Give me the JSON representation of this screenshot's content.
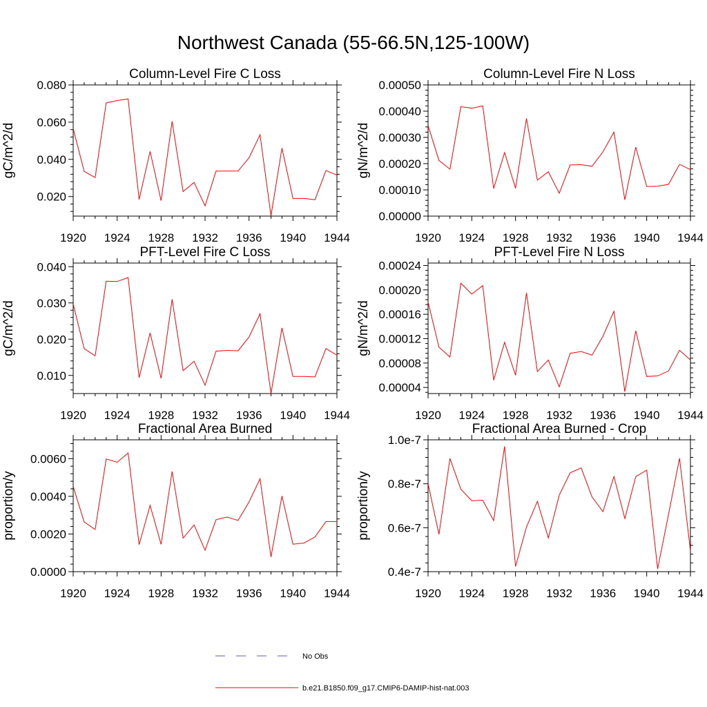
{
  "title": "Northwest Canada (55-66.5N,125-100W)",
  "colors": {
    "series": "#ff0000",
    "obs": "#5a5aaa",
    "axis": "#000000"
  },
  "legend": [
    {
      "label": "No Obs",
      "style": "dashed",
      "color": "#5a5aaa"
    },
    {
      "label": "b.e21.B1850.f09_g17.CMIP6-DAMIP-hist-nat.003",
      "style": "solid",
      "color": "#ff0000"
    }
  ],
  "chart_data": [
    {
      "type": "line",
      "title": "Column-Level Fire C Loss",
      "ylabel": "gC/m^2/d",
      "xlabel": "",
      "xlim": [
        1920,
        1944
      ],
      "ylim": [
        0.0095,
        0.08
      ],
      "xticks": [
        1920,
        1924,
        1928,
        1932,
        1936,
        1940,
        1944
      ],
      "yticks": [
        0.02,
        0.04,
        0.06,
        0.08
      ],
      "ytick_labels": [
        "0.020",
        "0.040",
        "0.060",
        "0.080"
      ],
      "x": [
        1920,
        1921,
        1922,
        1923,
        1924,
        1925,
        1926,
        1927,
        1928,
        1929,
        1930,
        1931,
        1932,
        1933,
        1934,
        1935,
        1936,
        1937,
        1938,
        1939,
        1940,
        1941,
        1942,
        1943,
        1944
      ],
      "series": [
        {
          "name": "b.e21.B1850.f09_g17.CMIP6-DAMIP-hist-nat.003",
          "values": [
            0.0565,
            0.0335,
            0.0302,
            0.0703,
            0.0716,
            0.0725,
            0.0184,
            0.0443,
            0.0178,
            0.0604,
            0.0227,
            0.0276,
            0.015,
            0.0337,
            0.0337,
            0.0337,
            0.0408,
            0.0532,
            0.0097,
            0.046,
            0.019,
            0.019,
            0.0183,
            0.034,
            0.0315
          ]
        }
      ]
    },
    {
      "type": "line",
      "title": "Column-Level Fire N Loss",
      "ylabel": "gN/m^2/d",
      "xlabel": "",
      "xlim": [
        1920,
        1944
      ],
      "ylim": [
        0.0,
        0.0005
      ],
      "xticks": [
        1920,
        1924,
        1928,
        1932,
        1936,
        1940,
        1944
      ],
      "yticks": [
        0.0,
        0.0001,
        0.0002,
        0.0003,
        0.0004,
        0.0005
      ],
      "ytick_labels": [
        "0.00000",
        "0.00010",
        "0.00020",
        "0.00030",
        "0.00040",
        "0.00050"
      ],
      "x": [
        1920,
        1921,
        1922,
        1923,
        1924,
        1925,
        1926,
        1927,
        1928,
        1929,
        1930,
        1931,
        1932,
        1933,
        1934,
        1935,
        1936,
        1937,
        1938,
        1939,
        1940,
        1941,
        1942,
        1943,
        1944
      ],
      "series": [
        {
          "name": "b.e21.B1850.f09_g17.CMIP6-DAMIP-hist-nat.003",
          "values": [
            0.000345,
            0.000212,
            0.000179,
            0.000417,
            0.000411,
            0.00042,
            0.000105,
            0.000242,
            0.000106,
            0.000372,
            0.000137,
            0.000169,
            8.7e-05,
            0.000195,
            0.000196,
            0.00019,
            0.000245,
            0.00032,
            6.2e-05,
            0.000263,
            0.000113,
            0.000114,
            0.000121,
            0.000197,
            0.000177
          ]
        }
      ]
    },
    {
      "type": "line",
      "title": "PFT-Level Fire C Loss",
      "ylabel": "gC/m^2/d",
      "xlabel": "",
      "xlim": [
        1920,
        1944
      ],
      "ylim": [
        0.005,
        0.041
      ],
      "xticks": [
        1920,
        1924,
        1928,
        1932,
        1936,
        1940,
        1944
      ],
      "yticks": [
        0.01,
        0.02,
        0.03,
        0.04
      ],
      "ytick_labels": [
        "0.010",
        "0.020",
        "0.030",
        "0.040"
      ],
      "x": [
        1920,
        1921,
        1922,
        1923,
        1924,
        1925,
        1926,
        1927,
        1928,
        1929,
        1930,
        1931,
        1932,
        1933,
        1934,
        1935,
        1936,
        1937,
        1938,
        1939,
        1940,
        1941,
        1942,
        1943,
        1944
      ],
      "series": [
        {
          "name": "b.e21.B1850.f09_g17.CMIP6-DAMIP-hist-nat.003",
          "values": [
            0.0297,
            0.0174,
            0.0154,
            0.036,
            0.0359,
            0.037,
            0.0094,
            0.0217,
            0.0092,
            0.031,
            0.0113,
            0.0139,
            0.0073,
            0.0167,
            0.0169,
            0.0168,
            0.0206,
            0.027,
            0.005,
            0.0231,
            0.0097,
            0.0097,
            0.0096,
            0.0174,
            0.0156
          ]
        }
      ]
    },
    {
      "type": "line",
      "title": "PFT-Level Fire N Loss",
      "ylabel": "gN/m^2/d",
      "xlabel": "",
      "xlim": [
        1920,
        1944
      ],
      "ylim": [
        3e-05,
        0.000244
      ],
      "xticks": [
        1920,
        1924,
        1928,
        1932,
        1936,
        1940,
        1944
      ],
      "yticks": [
        4e-05,
        8e-05,
        0.00012,
        0.00016,
        0.0002,
        0.00024
      ],
      "ytick_labels": [
        "0.00004",
        "0.00008",
        "0.00012",
        "0.00016",
        "0.00020",
        "0.00024"
      ],
      "x": [
        1920,
        1921,
        1922,
        1923,
        1924,
        1925,
        1926,
        1927,
        1928,
        1929,
        1930,
        1931,
        1932,
        1933,
        1934,
        1935,
        1936,
        1937,
        1938,
        1939,
        1940,
        1941,
        1942,
        1943,
        1944
      ],
      "series": [
        {
          "name": "b.e21.B1850.f09_g17.CMIP6-DAMIP-hist-nat.003",
          "values": [
            0.00018,
            0.000106,
            9e-05,
            0.000211,
            0.000193,
            0.000207,
            5.2e-05,
            0.000114,
            6e-05,
            0.000195,
            6.6e-05,
            8.5e-05,
            4.1e-05,
            9.6e-05,
            9.9e-05,
            9.3e-05,
            0.000124,
            0.000165,
            3.3e-05,
            0.000133,
            5.8e-05,
            5.9e-05,
            6.7e-05,
            0.000101,
            8.5e-05
          ]
        }
      ]
    },
    {
      "type": "line",
      "title": "Fractional Area Burned",
      "ylabel": "proportion/y",
      "xlabel": "",
      "xlim": [
        1920,
        1944
      ],
      "ylim": [
        0.0,
        0.007
      ],
      "xticks": [
        1920,
        1924,
        1928,
        1932,
        1936,
        1940,
        1944
      ],
      "yticks": [
        0.0,
        0.002,
        0.004,
        0.006
      ],
      "ytick_labels": [
        "0.0000",
        "0.0020",
        "0.0040",
        "0.0060"
      ],
      "x": [
        1920,
        1921,
        1922,
        1923,
        1924,
        1925,
        1926,
        1927,
        1928,
        1929,
        1930,
        1931,
        1932,
        1933,
        1934,
        1935,
        1936,
        1937,
        1938,
        1939,
        1940,
        1941,
        1942,
        1943,
        1944
      ],
      "series": [
        {
          "name": "b.e21.B1850.f09_g17.CMIP6-DAMIP-hist-nat.003",
          "values": [
            0.00452,
            0.00264,
            0.00224,
            0.00598,
            0.00581,
            0.0063,
            0.00144,
            0.00352,
            0.00145,
            0.00532,
            0.00178,
            0.00248,
            0.00114,
            0.00276,
            0.0029,
            0.00272,
            0.0037,
            0.00493,
            0.00078,
            0.00402,
            0.00146,
            0.00152,
            0.00184,
            0.00266,
            0.00266
          ]
        }
      ]
    },
    {
      "type": "line",
      "title": "Fractional Area Burned - Crop",
      "ylabel": "proportion/y",
      "xlabel": "",
      "xlim": [
        1920,
        1944
      ],
      "ylim": [
        4e-08,
        1e-07
      ],
      "xticks": [
        1920,
        1924,
        1928,
        1932,
        1936,
        1940,
        1944
      ],
      "yticks": [
        4e-08,
        6e-08,
        8e-08,
        1e-07
      ],
      "ytick_labels": [
        "0.4e-7",
        "0.6e-7",
        "0.8e-7",
        "1.0e-7"
      ],
      "x": [
        1920,
        1921,
        1922,
        1923,
        1924,
        1925,
        1926,
        1927,
        1928,
        1929,
        1930,
        1931,
        1932,
        1933,
        1934,
        1935,
        1936,
        1937,
        1938,
        1939,
        1940,
        1941,
        1942,
        1943,
        1944
      ],
      "series": [
        {
          "name": "b.e21.B1850.f09_g17.CMIP6-DAMIP-hist-nat.003",
          "values": [
            8e-08,
            5.7e-08,
            9.15e-08,
            7.75e-08,
            7.23e-08,
            7.25e-08,
            6.32e-08,
            9.7e-08,
            4.24e-08,
            6.03e-08,
            7.2e-08,
            5.53e-08,
            7.48e-08,
            8.5e-08,
            8.72e-08,
            7.4e-08,
            6.73e-08,
            8.33e-08,
            6.42e-08,
            8.32e-08,
            8.62e-08,
            4.13e-08,
            6.61e-08,
            9.16e-08,
            4.95e-08
          ]
        }
      ]
    }
  ]
}
